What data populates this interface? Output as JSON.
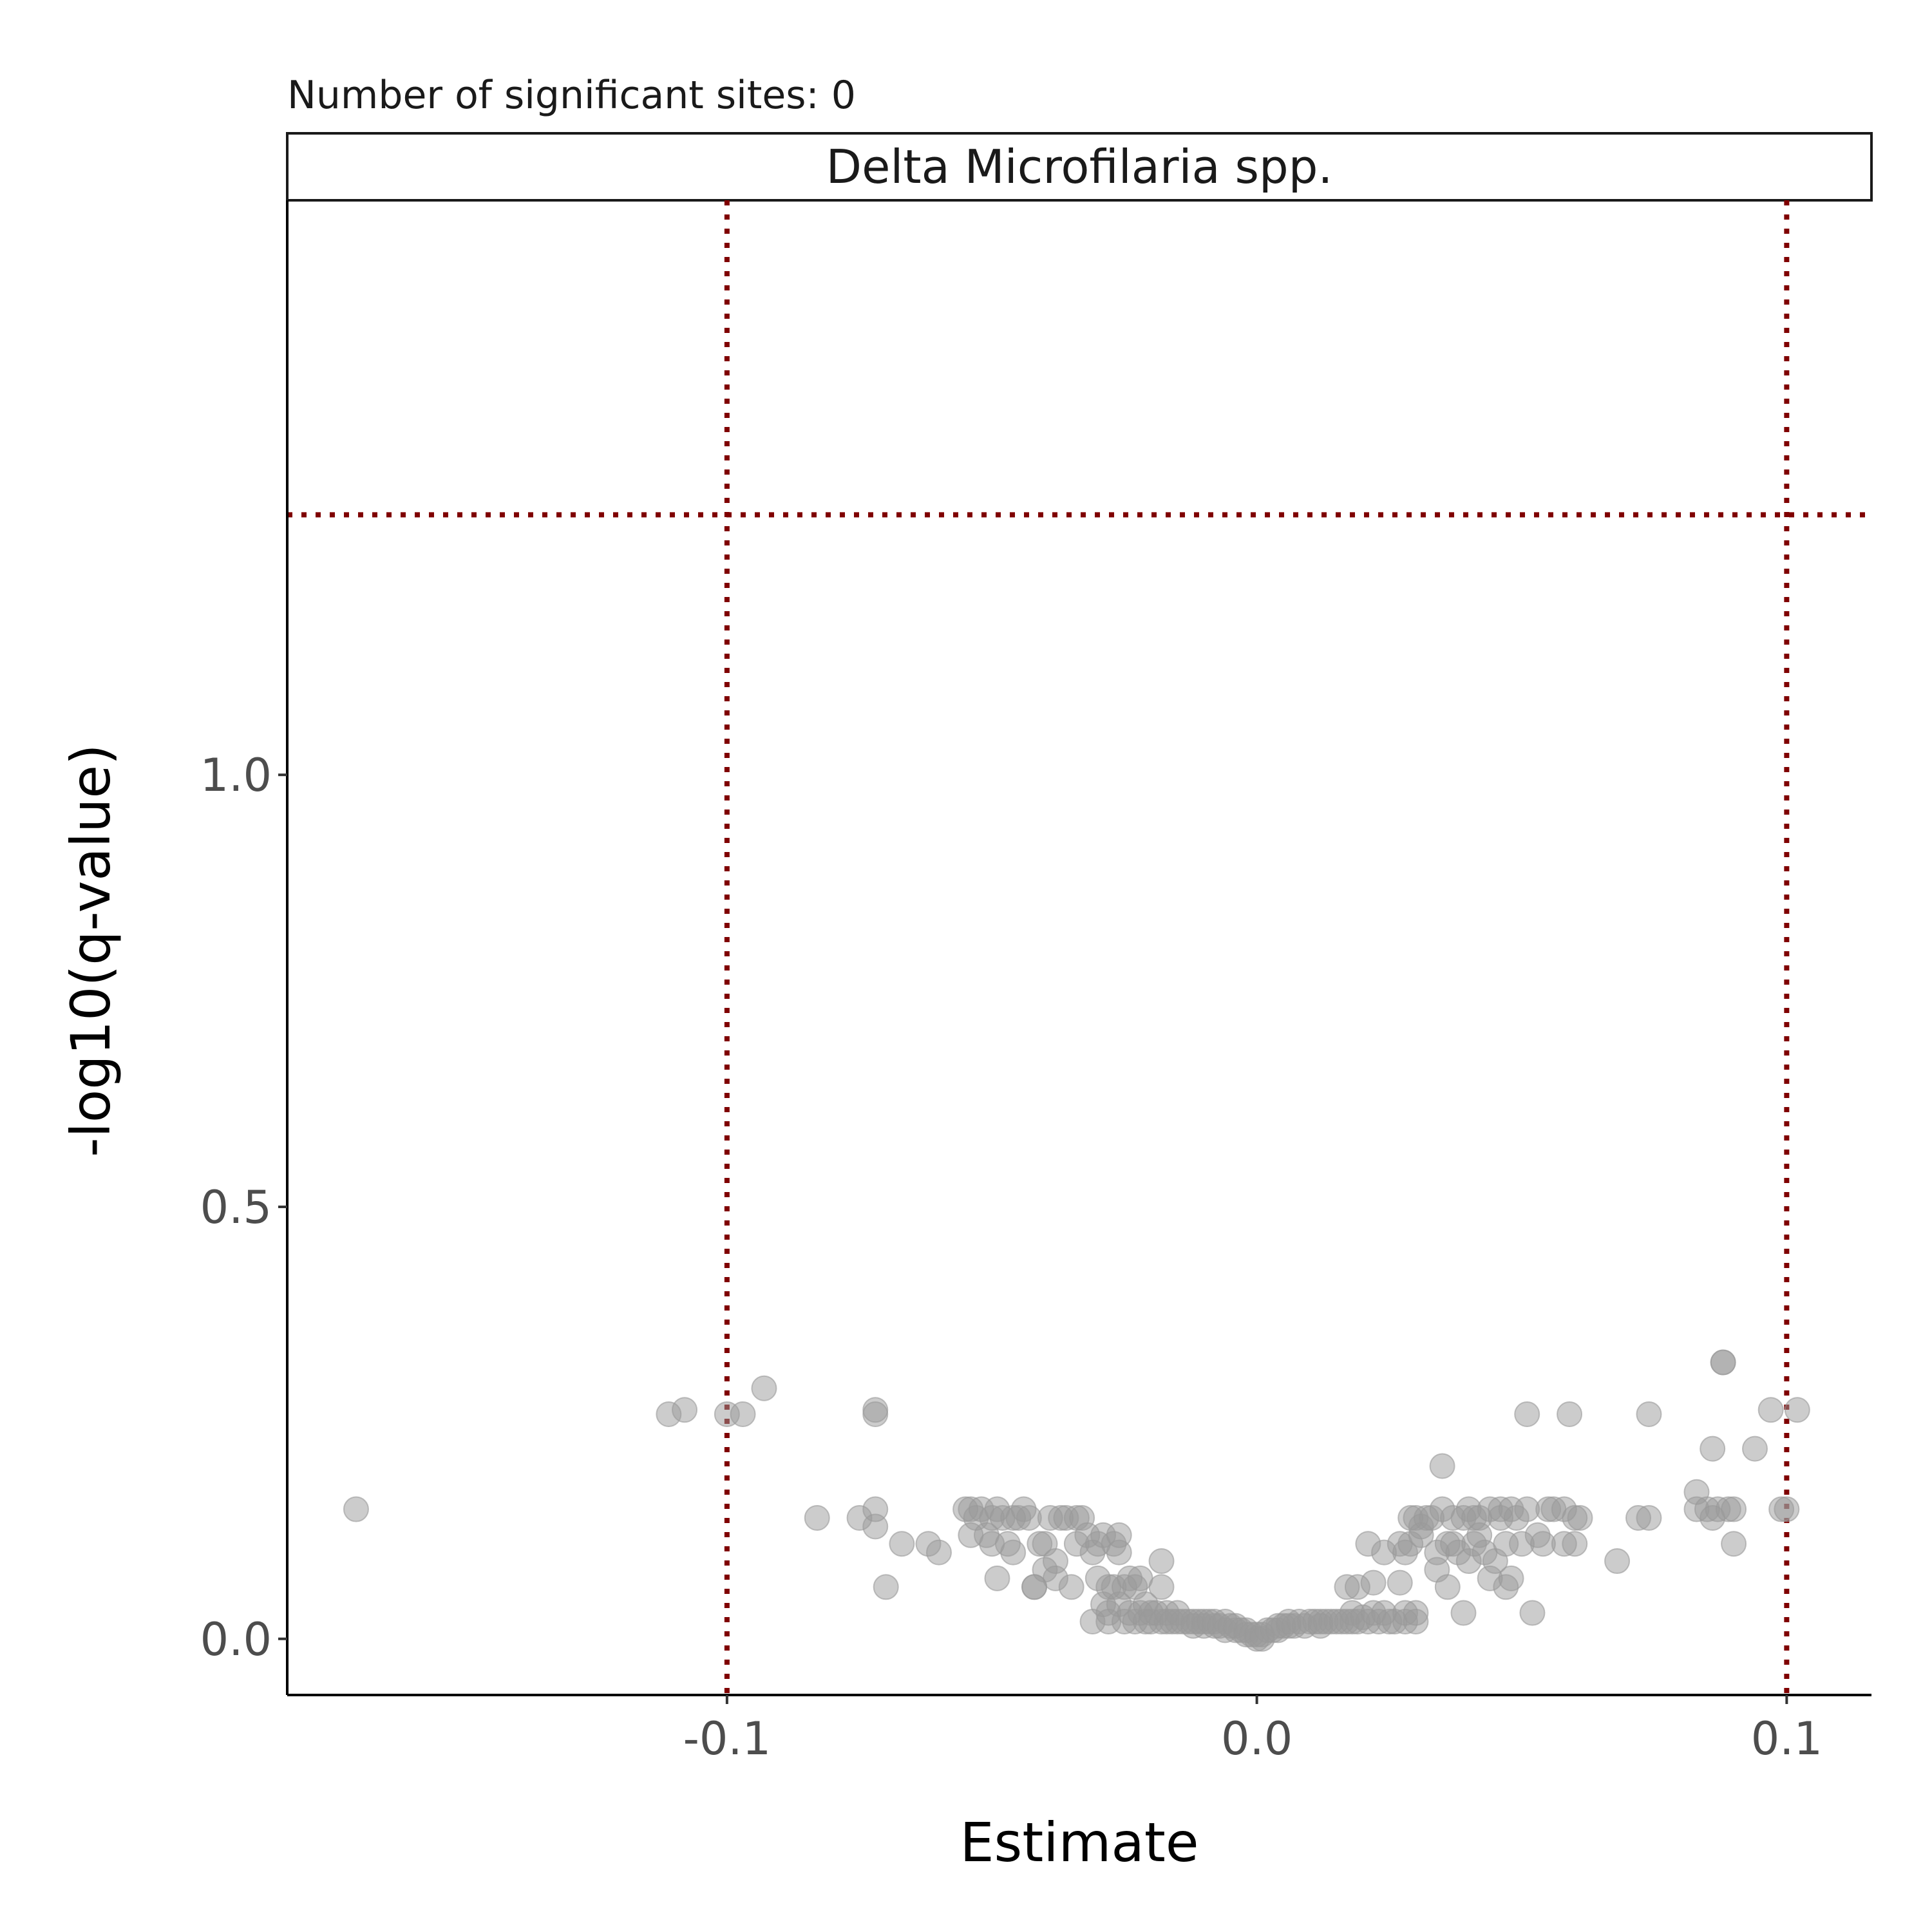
{
  "chart_data": {
    "type": "scatter",
    "title": "Number of significant sites: 0",
    "facet_label": "Delta Microfilaria spp.",
    "xlabel": "Estimate",
    "ylabel": "-log10(q-value)",
    "xlim": [
      -0.183,
      0.116
    ],
    "ylim": [
      -0.065,
      1.665
    ],
    "xticks": [
      -0.1,
      0.0,
      0.1
    ],
    "xtick_labels": [
      "-0.1",
      "0.0",
      "0.1"
    ],
    "yticks": [
      0.0,
      0.5,
      1.0
    ],
    "ytick_labels": [
      "0.0",
      "0.5",
      "1.0"
    ],
    "grid": false,
    "point_color": "#999999",
    "reference_line_color": "#7f0000",
    "reference_lines": {
      "vertical_x": [
        -0.1,
        0.1
      ],
      "horizontal_y": 1.301
    },
    "points": [
      [
        -0.17,
        0.15
      ],
      [
        -0.111,
        0.26
      ],
      [
        -0.108,
        0.265
      ],
      [
        -0.1,
        0.26
      ],
      [
        -0.097,
        0.26
      ],
      [
        -0.093,
        0.29
      ],
      [
        -0.083,
        0.14
      ],
      [
        -0.075,
        0.14
      ],
      [
        -0.072,
        0.265
      ],
      [
        -0.072,
        0.26
      ],
      [
        -0.072,
        0.15
      ],
      [
        -0.072,
        0.13
      ],
      [
        -0.07,
        0.06
      ],
      [
        -0.067,
        0.11
      ],
      [
        -0.062,
        0.11
      ],
      [
        -0.06,
        0.1
      ],
      [
        -0.055,
        0.15
      ],
      [
        -0.054,
        0.15
      ],
      [
        -0.054,
        0.12
      ],
      [
        -0.053,
        0.14
      ],
      [
        -0.052,
        0.15
      ],
      [
        -0.051,
        0.12
      ],
      [
        -0.05,
        0.14
      ],
      [
        -0.05,
        0.11
      ],
      [
        -0.049,
        0.15
      ],
      [
        -0.049,
        0.07
      ],
      [
        -0.048,
        0.14
      ],
      [
        -0.047,
        0.11
      ],
      [
        -0.046,
        0.14
      ],
      [
        -0.046,
        0.1
      ],
      [
        -0.045,
        0.14
      ],
      [
        -0.044,
        0.15
      ],
      [
        -0.043,
        0.14
      ],
      [
        -0.042,
        0.06
      ],
      [
        -0.042,
        0.06
      ],
      [
        -0.041,
        0.11
      ],
      [
        -0.04,
        0.11
      ],
      [
        -0.04,
        0.08
      ],
      [
        -0.039,
        0.14
      ],
      [
        -0.038,
        0.09
      ],
      [
        -0.038,
        0.07
      ],
      [
        -0.037,
        0.14
      ],
      [
        -0.036,
        0.14
      ],
      [
        -0.035,
        0.06
      ],
      [
        -0.034,
        0.11
      ],
      [
        -0.034,
        0.14
      ],
      [
        -0.033,
        0.14
      ],
      [
        -0.032,
        0.12
      ],
      [
        -0.031,
        0.1
      ],
      [
        -0.031,
        0.02
      ],
      [
        -0.03,
        0.07
      ],
      [
        -0.03,
        0.11
      ],
      [
        -0.029,
        0.12
      ],
      [
        -0.029,
        0.04
      ],
      [
        -0.028,
        0.03
      ],
      [
        -0.028,
        0.06
      ],
      [
        -0.028,
        0.02
      ],
      [
        -0.027,
        0.06
      ],
      [
        -0.027,
        0.11
      ],
      [
        -0.026,
        0.1
      ],
      [
        -0.026,
        0.12
      ],
      [
        -0.026,
        0.04
      ],
      [
        -0.025,
        0.02
      ],
      [
        -0.025,
        0.06
      ],
      [
        -0.024,
        0.07
      ],
      [
        -0.024,
        0.03
      ],
      [
        -0.023,
        0.06
      ],
      [
        -0.023,
        0.02
      ],
      [
        -0.022,
        0.03
      ],
      [
        -0.022,
        0.07
      ],
      [
        -0.021,
        0.02
      ],
      [
        -0.021,
        0.04
      ],
      [
        -0.02,
        0.03
      ],
      [
        -0.02,
        0.02
      ],
      [
        -0.019,
        0.03
      ],
      [
        -0.018,
        0.02
      ],
      [
        -0.018,
        0.06
      ],
      [
        -0.018,
        0.09
      ],
      [
        -0.017,
        0.02
      ],
      [
        -0.017,
        0.03
      ],
      [
        -0.016,
        0.02
      ],
      [
        -0.015,
        0.02
      ],
      [
        -0.015,
        0.03
      ],
      [
        -0.014,
        0.02
      ],
      [
        -0.013,
        0.02
      ],
      [
        -0.012,
        0.02
      ],
      [
        -0.012,
        0.015
      ],
      [
        -0.011,
        0.02
      ],
      [
        -0.01,
        0.02
      ],
      [
        -0.01,
        0.015
      ],
      [
        -0.009,
        0.02
      ],
      [
        -0.008,
        0.015
      ],
      [
        -0.008,
        0.02
      ],
      [
        -0.007,
        0.015
      ],
      [
        -0.006,
        0.02
      ],
      [
        -0.006,
        0.01
      ],
      [
        -0.005,
        0.015
      ],
      [
        -0.004,
        0.01
      ],
      [
        -0.004,
        0.015
      ],
      [
        -0.003,
        0.01
      ],
      [
        -0.002,
        0.01
      ],
      [
        -0.002,
        0.005
      ],
      [
        -0.001,
        0.005
      ],
      [
        0.0,
        0.0
      ],
      [
        0.0,
        0.005
      ],
      [
        0.001,
        0.005
      ],
      [
        0.001,
        0.0
      ],
      [
        0.002,
        0.01
      ],
      [
        0.003,
        0.01
      ],
      [
        0.004,
        0.015
      ],
      [
        0.004,
        0.01
      ],
      [
        0.005,
        0.015
      ],
      [
        0.006,
        0.015
      ],
      [
        0.006,
        0.02
      ],
      [
        0.007,
        0.015
      ],
      [
        0.008,
        0.02
      ],
      [
        0.009,
        0.015
      ],
      [
        0.01,
        0.02
      ],
      [
        0.011,
        0.02
      ],
      [
        0.012,
        0.015
      ],
      [
        0.012,
        0.02
      ],
      [
        0.013,
        0.02
      ],
      [
        0.014,
        0.02
      ],
      [
        0.015,
        0.02
      ],
      [
        0.016,
        0.02
      ],
      [
        0.017,
        0.02
      ],
      [
        0.017,
        0.06
      ],
      [
        0.018,
        0.03
      ],
      [
        0.018,
        0.02
      ],
      [
        0.019,
        0.02
      ],
      [
        0.019,
        0.06
      ],
      [
        0.02,
        0.025
      ],
      [
        0.021,
        0.02
      ],
      [
        0.021,
        0.11
      ],
      [
        0.022,
        0.03
      ],
      [
        0.022,
        0.065
      ],
      [
        0.023,
        0.02
      ],
      [
        0.024,
        0.03
      ],
      [
        0.024,
        0.1
      ],
      [
        0.025,
        0.02
      ],
      [
        0.026,
        0.02
      ],
      [
        0.027,
        0.11
      ],
      [
        0.027,
        0.065
      ],
      [
        0.028,
        0.1
      ],
      [
        0.028,
        0.02
      ],
      [
        0.028,
        0.03
      ],
      [
        0.029,
        0.11
      ],
      [
        0.029,
        0.14
      ],
      [
        0.03,
        0.14
      ],
      [
        0.03,
        0.02
      ],
      [
        0.03,
        0.03
      ],
      [
        0.031,
        0.12
      ],
      [
        0.031,
        0.13
      ],
      [
        0.032,
        0.14
      ],
      [
        0.033,
        0.14
      ],
      [
        0.034,
        0.08
      ],
      [
        0.034,
        0.1
      ],
      [
        0.035,
        0.2
      ],
      [
        0.035,
        0.15
      ],
      [
        0.036,
        0.11
      ],
      [
        0.036,
        0.06
      ],
      [
        0.037,
        0.14
      ],
      [
        0.037,
        0.11
      ],
      [
        0.038,
        0.1
      ],
      [
        0.039,
        0.14
      ],
      [
        0.039,
        0.03
      ],
      [
        0.04,
        0.09
      ],
      [
        0.04,
        0.15
      ],
      [
        0.041,
        0.11
      ],
      [
        0.041,
        0.14
      ],
      [
        0.042,
        0.12
      ],
      [
        0.042,
        0.14
      ],
      [
        0.043,
        0.1
      ],
      [
        0.044,
        0.15
      ],
      [
        0.044,
        0.07
      ],
      [
        0.045,
        0.09
      ],
      [
        0.046,
        0.14
      ],
      [
        0.046,
        0.15
      ],
      [
        0.047,
        0.11
      ],
      [
        0.047,
        0.06
      ],
      [
        0.048,
        0.07
      ],
      [
        0.048,
        0.15
      ],
      [
        0.049,
        0.14
      ],
      [
        0.05,
        0.11
      ],
      [
        0.051,
        0.15
      ],
      [
        0.051,
        0.26
      ],
      [
        0.052,
        0.03
      ],
      [
        0.053,
        0.12
      ],
      [
        0.054,
        0.11
      ],
      [
        0.055,
        0.15
      ],
      [
        0.056,
        0.15
      ],
      [
        0.058,
        0.11
      ],
      [
        0.058,
        0.15
      ],
      [
        0.059,
        0.26
      ],
      [
        0.06,
        0.14
      ],
      [
        0.06,
        0.11
      ],
      [
        0.061,
        0.14
      ],
      [
        0.068,
        0.09
      ],
      [
        0.072,
        0.14
      ],
      [
        0.074,
        0.14
      ],
      [
        0.074,
        0.26
      ],
      [
        0.083,
        0.17
      ],
      [
        0.083,
        0.15
      ],
      [
        0.085,
        0.15
      ],
      [
        0.086,
        0.22
      ],
      [
        0.086,
        0.14
      ],
      [
        0.087,
        0.15
      ],
      [
        0.088,
        0.32
      ],
      [
        0.088,
        0.32
      ],
      [
        0.089,
        0.15
      ],
      [
        0.09,
        0.11
      ],
      [
        0.09,
        0.15
      ],
      [
        0.094,
        0.22
      ],
      [
        0.097,
        0.265
      ],
      [
        0.099,
        0.15
      ],
      [
        0.1,
        0.15
      ],
      [
        0.102,
        0.265
      ]
    ]
  }
}
